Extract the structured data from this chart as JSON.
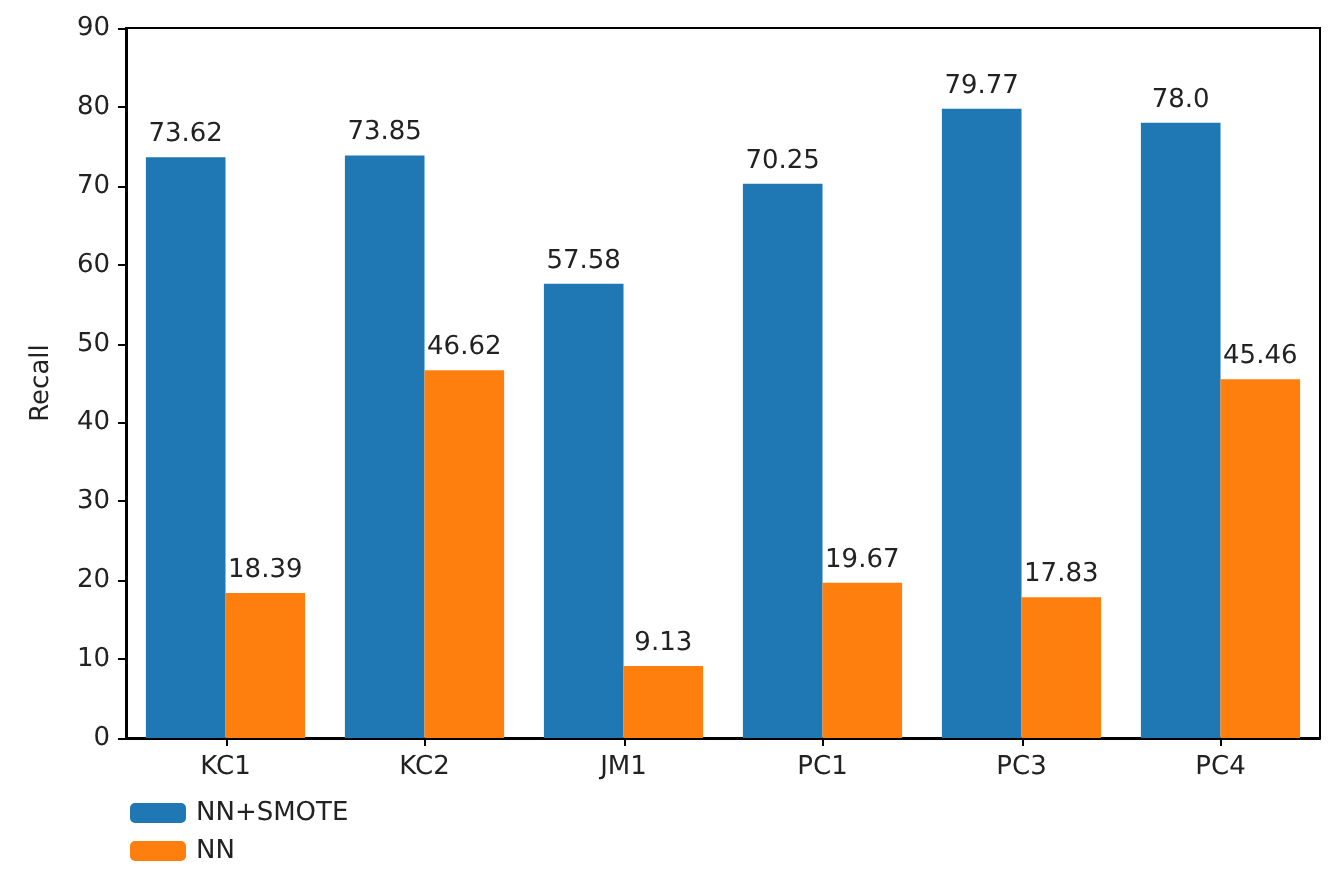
{
  "chart_data": {
    "type": "bar",
    "ylabel": "Recall",
    "categories": [
      "KC1",
      "KC2",
      "JM1",
      "PC1",
      "PC3",
      "PC4"
    ],
    "series": [
      {
        "name": "NN+SMOTE",
        "color": "#1f77b4",
        "values": [
          73.62,
          73.85,
          57.58,
          70.25,
          79.77,
          78.0
        ],
        "value_labels": [
          "73.62",
          "73.85",
          "57.58",
          "70.25",
          "79.77",
          "78.0"
        ]
      },
      {
        "name": "NN",
        "color": "#ff7f0e",
        "values": [
          18.39,
          46.62,
          9.13,
          19.67,
          17.83,
          45.46
        ],
        "value_labels": [
          "18.39",
          "46.62",
          "9.13",
          "19.67",
          "17.83",
          "45.46"
        ]
      }
    ],
    "ylim": [
      0,
      90
    ],
    "yticks": [
      0,
      10,
      20,
      30,
      40,
      50,
      60,
      70,
      80,
      90
    ],
    "grid": false,
    "legend": "bottom left"
  }
}
